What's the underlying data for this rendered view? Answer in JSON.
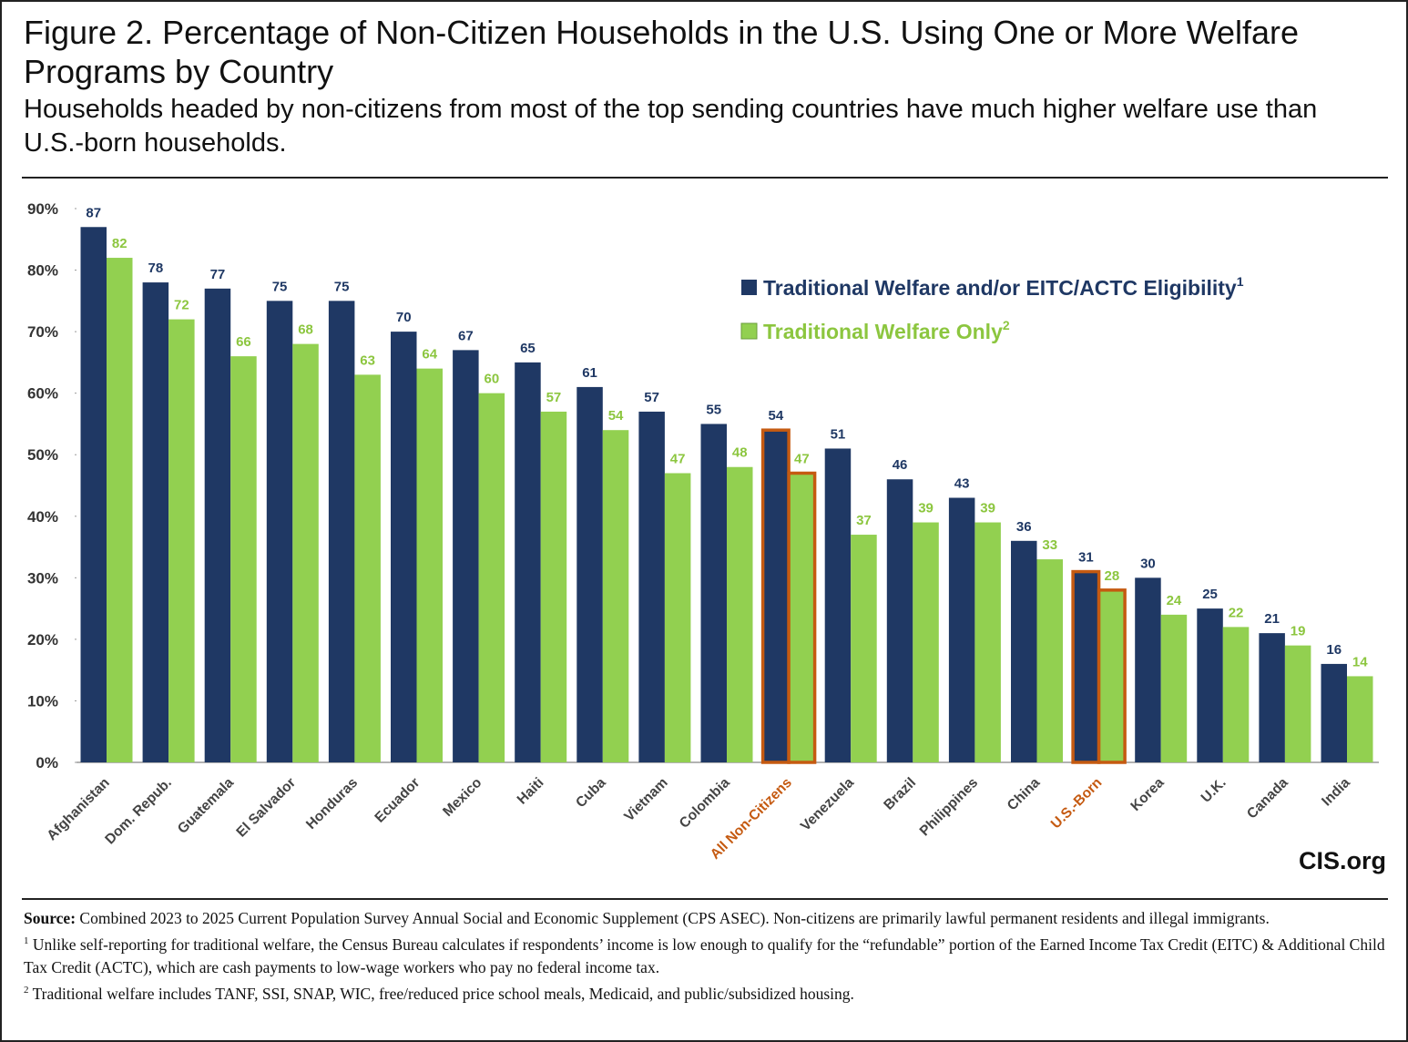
{
  "header": {
    "title": "Figure 2. Percentage of Non-Citizen Households in the U.S. Using One or More Welfare Programs by Country",
    "subtitle": "Households headed by non-citizens from most of the top sending countries have much higher welfare use than U.S.-born households."
  },
  "chart_data": {
    "type": "bar",
    "categories": [
      "Afghanistan",
      "Dom. Repub.",
      "Guatemala",
      "El Salvador",
      "Honduras",
      "Ecuador",
      "Mexico",
      "Haiti",
      "Cuba",
      "Vietnam",
      "Colombia",
      "All Non-Citizens",
      "Venezuela",
      "Brazil",
      "Philippines",
      "China",
      "U.S.-Born",
      "Korea",
      "U.K.",
      "Canada",
      "India"
    ],
    "series": [
      {
        "name": "Traditional Welfare and/or EITC/ACTC Eligibility",
        "footnote": "1",
        "color": "#1f3864",
        "values": [
          87,
          78,
          77,
          75,
          75,
          70,
          67,
          65,
          61,
          57,
          55,
          54,
          51,
          46,
          43,
          36,
          31,
          30,
          25,
          21,
          16
        ]
      },
      {
        "name": "Traditional Welfare Only",
        "footnote": "2",
        "color": "#92d050",
        "values": [
          82,
          72,
          66,
          68,
          63,
          64,
          60,
          57,
          54,
          47,
          48,
          47,
          37,
          39,
          39,
          33,
          28,
          24,
          22,
          19,
          14
        ]
      }
    ],
    "highlight": [
      11,
      16
    ],
    "highlight_color": "#c55a11",
    "ylim": [
      0,
      90
    ],
    "yticks": [
      {
        "value": 0,
        "label": "0%"
      },
      {
        "value": 10,
        "label": "10%"
      },
      {
        "value": 20,
        "label": "20%"
      },
      {
        "value": 30,
        "label": "30%"
      },
      {
        "value": 40,
        "label": "40%"
      },
      {
        "value": 50,
        "label": "50%"
      },
      {
        "value": 60,
        "label": "60%"
      },
      {
        "value": 70,
        "label": "70%"
      },
      {
        "value": 80,
        "label": "80%"
      },
      {
        "value": 90,
        "label": "90%"
      }
    ],
    "grid": false,
    "legend": "upper right",
    "logo": "CIS.org"
  },
  "footer": {
    "source_label": "Source:",
    "source": "Combined 2023 to 2025 Current Population Survey Annual Social and Economic Supplement (CPS ASEC). Non-citizens are primarily lawful permanent residents and illegal immigrants.",
    "notes": [
      {
        "marker": "1",
        "text": "Unlike self-reporting for traditional welfare, the Census Bureau calculates if respondents’ income is low enough to qualify for the “refundable” portion of the Earned Income Tax Credit (EITC) & Additional Child Tax Credit (ACTC), which are cash payments to low-wage workers who pay no federal income tax."
      },
      {
        "marker": "2",
        "text": "Traditional welfare includes TANF, SSI, SNAP, WIC, free/reduced price school meals, Medicaid, and public/subsidized housing."
      }
    ]
  }
}
